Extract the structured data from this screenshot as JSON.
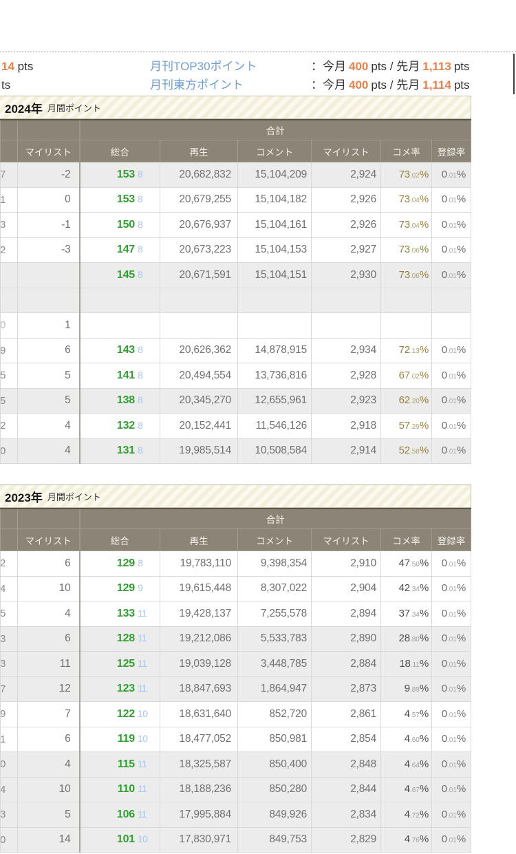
{
  "top": {
    "fragment_row1": {
      "value": "14",
      "unit": " pts"
    },
    "fragment_row2": "ts",
    "stats": [
      {
        "label": "月刊TOP30ポイント",
        "colon": "：今月",
        "current": "400",
        "between": "pts / 先月",
        "previous": "1,113",
        "after": "pts"
      },
      {
        "label": "月刊東方ポイント",
        "colon": "：今月",
        "current": "400",
        "between": "pts / 先月",
        "previous": "1,114",
        "after": "pts"
      }
    ]
  },
  "colors": {
    "orange": "#e8824b",
    "link_blue": "#6e9ed0",
    "total_green": "#2fa02f",
    "sub_blue": "#a9c6ee",
    "change_blue": "#4c4cd4",
    "value_red": "#c4504b",
    "rate_olive": "#94803a",
    "header_bg": "#8b8477",
    "row_gray": "#ececec"
  },
  "tables": [
    {
      "year": "2024年",
      "subtitle": "月間ポイント",
      "group_header": "合計",
      "columns": [
        "マイリスト",
        "総合",
        "再生",
        "コメント",
        "マイリスト",
        "コメ率",
        "登録率"
      ],
      "rows": [
        {
          "edge": "7",
          "edge_color": "gray",
          "mylist_change": "-2",
          "mylist_change_color": "blue",
          "total": "153",
          "total_sub": "8",
          "plays": "20,682,832",
          "comments": "15,104,209",
          "mylist_total": "2,924",
          "mylist_total_color": "blue",
          "comment_rate": "73.02%",
          "comment_rate_color": "olive",
          "register_rate": "0.01%",
          "bg": "gray"
        },
        {
          "edge": "1",
          "edge_color": "gray",
          "mylist_change": "0",
          "mylist_change_color": "green",
          "total": "153",
          "total_sub": "8",
          "plays": "20,679,255",
          "comments": "15,104,182",
          "mylist_total": "2,926",
          "mylist_total_color": "sage",
          "comment_rate": "73.04%",
          "comment_rate_color": "olive",
          "register_rate": "0.01%",
          "bg": "white"
        },
        {
          "edge": "3",
          "edge_color": "gray",
          "mylist_change": "-1",
          "mylist_change_color": "blue",
          "total": "150",
          "total_sub": "8",
          "plays": "20,676,937",
          "comments": "15,104,161",
          "mylist_total": "2,926",
          "mylist_total_color": "blue",
          "comment_rate": "73.04%",
          "comment_rate_color": "olive",
          "register_rate": "0.01%",
          "bg": "white"
        },
        {
          "edge": "2",
          "edge_color": "gray",
          "mylist_change": "-3",
          "mylist_change_color": "blue",
          "total": "147",
          "total_sub": "8",
          "plays": "20,673,223",
          "comments": "15,104,153",
          "mylist_total": "2,927",
          "mylist_total_color": "blue",
          "comment_rate": "73.06%",
          "comment_rate_color": "olive",
          "register_rate": "0.01%",
          "bg": "white"
        },
        {
          "edge": "",
          "edge_color": "gray",
          "mylist_change": "",
          "mylist_change_color": "gray",
          "total": "145",
          "total_sub": "8",
          "plays": "20,671,591",
          "comments": "15,104,151",
          "mylist_total": "2,930",
          "mylist_total_color": "gray",
          "comment_rate": "73.06%",
          "comment_rate_color": "olive",
          "register_rate": "0.01%",
          "bg": "gray"
        },
        {
          "edge": "",
          "edge_color": "gray",
          "mylist_change": "",
          "mylist_change_color": "gray",
          "total": "",
          "total_sub": "",
          "plays": "",
          "comments": "",
          "mylist_total": "",
          "mylist_total_color": "gray",
          "comment_rate": "",
          "comment_rate_color": "olive",
          "register_rate": "",
          "bg": "gray"
        },
        {
          "edge": "0",
          "edge_color": "lightgray",
          "mylist_change": "1",
          "mylist_change_color": "lightgray",
          "total": "",
          "total_sub": "",
          "plays": "",
          "comments": "",
          "mylist_total": "",
          "mylist_total_color": "gray",
          "comment_rate": "",
          "comment_rate_color": "olive",
          "register_rate": "",
          "bg": "white"
        },
        {
          "edge": "9",
          "edge_color": "gray",
          "mylist_change": "6",
          "mylist_change_color": "red",
          "total": "143",
          "total_sub": "8",
          "plays": "20,626,362",
          "comments": "14,878,915",
          "mylist_total": "2,934",
          "mylist_total_color": "red",
          "comment_rate": "72.13%",
          "comment_rate_color": "olive",
          "register_rate": "0.01%",
          "bg": "white"
        },
        {
          "edge": "5",
          "edge_color": "gray",
          "mylist_change": "5",
          "mylist_change_color": "red",
          "total": "141",
          "total_sub": "8",
          "plays": "20,494,554",
          "comments": "13,736,816",
          "mylist_total": "2,928",
          "mylist_total_color": "red",
          "comment_rate": "67.02%",
          "comment_rate_color": "olive",
          "register_rate": "0.01%",
          "bg": "white"
        },
        {
          "edge": "5",
          "edge_color": "gray",
          "mylist_change": "5",
          "mylist_change_color": "red",
          "total": "138",
          "total_sub": "8",
          "plays": "20,345,270",
          "comments": "12,655,961",
          "mylist_total": "2,923",
          "mylist_total_color": "red",
          "comment_rate": "62.20%",
          "comment_rate_color": "olive",
          "register_rate": "0.01%",
          "bg": "gray"
        },
        {
          "edge": "2",
          "edge_color": "gray",
          "mylist_change": "4",
          "mylist_change_color": "red",
          "total": "132",
          "total_sub": "8",
          "plays": "20,152,441",
          "comments": "11,546,126",
          "mylist_total": "2,918",
          "mylist_total_color": "red",
          "comment_rate": "57.29%",
          "comment_rate_color": "olive",
          "register_rate": "0.01%",
          "bg": "white"
        },
        {
          "edge": "0",
          "edge_color": "gray",
          "mylist_change": "4",
          "mylist_change_color": "red",
          "total": "131",
          "total_sub": "8",
          "plays": "19,985,514",
          "comments": "10,508,584",
          "mylist_total": "2,914",
          "mylist_total_color": "red",
          "comment_rate": "52.58%",
          "comment_rate_color": "olive",
          "register_rate": "0.01%",
          "bg": "gray"
        }
      ]
    },
    {
      "year": "2023年",
      "subtitle": "月間ポイント",
      "group_header": "合計",
      "columns": [
        "マイリスト",
        "総合",
        "再生",
        "コメント",
        "マイリスト",
        "コメ率",
        "登録率"
      ],
      "rows": [
        {
          "edge": "2",
          "edge_color": "gray",
          "mylist_change": "6",
          "mylist_change_color": "red",
          "total": "129",
          "total_sub": "8",
          "plays": "19,783,110",
          "comments": "9,398,354",
          "mylist_total": "2,910",
          "mylist_total_color": "red",
          "comment_rate": "47.50%",
          "comment_rate_color": "gray",
          "register_rate": "0.01%",
          "bg": "white"
        },
        {
          "edge": "4",
          "edge_color": "gray",
          "mylist_change": "10",
          "mylist_change_color": "red",
          "total": "129",
          "total_sub": "9",
          "plays": "19,615,448",
          "comments": "8,307,022",
          "mylist_total": "2,904",
          "mylist_total_color": "red",
          "comment_rate": "42.34%",
          "comment_rate_color": "gray",
          "register_rate": "0.01%",
          "bg": "white"
        },
        {
          "edge": "5",
          "edge_color": "gray",
          "mylist_change": "4",
          "mylist_change_color": "red",
          "total": "133",
          "total_sub": "11",
          "plays": "19,428,137",
          "comments": "7,255,578",
          "mylist_total": "2,894",
          "mylist_total_color": "red",
          "comment_rate": "37.34%",
          "comment_rate_color": "gray",
          "register_rate": "0.01%",
          "bg": "white"
        },
        {
          "edge": "3",
          "edge_color": "gray",
          "mylist_change": "6",
          "mylist_change_color": "red",
          "total": "128",
          "total_sub": "11",
          "plays": "19,212,086",
          "comments": "5,533,783",
          "mylist_total": "2,890",
          "mylist_total_color": "red",
          "comment_rate": "28.80%",
          "comment_rate_color": "gray",
          "register_rate": "0.01%",
          "bg": "gray"
        },
        {
          "edge": "3",
          "edge_color": "gray",
          "mylist_change": "11",
          "mylist_change_color": "red",
          "total": "125",
          "total_sub": "11",
          "plays": "19,039,128",
          "comments": "3,448,785",
          "mylist_total": "2,884",
          "mylist_total_color": "red",
          "comment_rate": "18.11%",
          "comment_rate_color": "gray",
          "register_rate": "0.01%",
          "bg": "gray"
        },
        {
          "edge": "7",
          "edge_color": "gray",
          "mylist_change": "12",
          "mylist_change_color": "red",
          "total": "123",
          "total_sub": "11",
          "plays": "18,847,693",
          "comments": "1,864,947",
          "mylist_total": "2,873",
          "mylist_total_color": "red",
          "comment_rate": "9.89%",
          "comment_rate_color": "gray",
          "register_rate": "0.01%",
          "bg": "gray"
        },
        {
          "edge": "9",
          "edge_color": "gray",
          "mylist_change": "7",
          "mylist_change_color": "red",
          "total": "122",
          "total_sub": "10",
          "plays": "18,631,640",
          "comments": "852,720",
          "mylist_total": "2,861",
          "mylist_total_color": "red",
          "comment_rate": "4.57%",
          "comment_rate_color": "gray",
          "register_rate": "0.01%",
          "bg": "white"
        },
        {
          "edge": "1",
          "edge_color": "gray",
          "mylist_change": "6",
          "mylist_change_color": "red",
          "total": "119",
          "total_sub": "10",
          "plays": "18,477,052",
          "comments": "850,981",
          "mylist_total": "2,854",
          "mylist_total_color": "red",
          "comment_rate": "4.60%",
          "comment_rate_color": "gray",
          "register_rate": "0.01%",
          "bg": "white"
        },
        {
          "edge": "0",
          "edge_color": "gray",
          "mylist_change": "4",
          "mylist_change_color": "red",
          "total": "115",
          "total_sub": "11",
          "plays": "18,325,587",
          "comments": "850,400",
          "mylist_total": "2,848",
          "mylist_total_color": "red",
          "comment_rate": "4.64%",
          "comment_rate_color": "gray",
          "register_rate": "0.01%",
          "bg": "gray"
        },
        {
          "edge": "4",
          "edge_color": "gray",
          "mylist_change": "10",
          "mylist_change_color": "red",
          "total": "110",
          "total_sub": "11",
          "plays": "18,188,236",
          "comments": "850,280",
          "mylist_total": "2,844",
          "mylist_total_color": "red",
          "comment_rate": "4.67%",
          "comment_rate_color": "gray",
          "register_rate": "0.01%",
          "bg": "gray"
        },
        {
          "edge": "3",
          "edge_color": "gray",
          "mylist_change": "5",
          "mylist_change_color": "red",
          "total": "106",
          "total_sub": "11",
          "plays": "17,995,884",
          "comments": "849,926",
          "mylist_total": "2,834",
          "mylist_total_color": "red",
          "comment_rate": "4.72%",
          "comment_rate_color": "gray",
          "register_rate": "0.01%",
          "bg": "gray"
        },
        {
          "edge": "0",
          "edge_color": "gray",
          "mylist_change": "14",
          "mylist_change_color": "red",
          "total": "101",
          "total_sub": "10",
          "plays": "17,830,971",
          "comments": "849,753",
          "mylist_total": "2,829",
          "mylist_total_color": "red",
          "comment_rate": "4.76%",
          "comment_rate_color": "gray",
          "register_rate": "0.01%",
          "bg": "gray"
        }
      ]
    }
  ]
}
